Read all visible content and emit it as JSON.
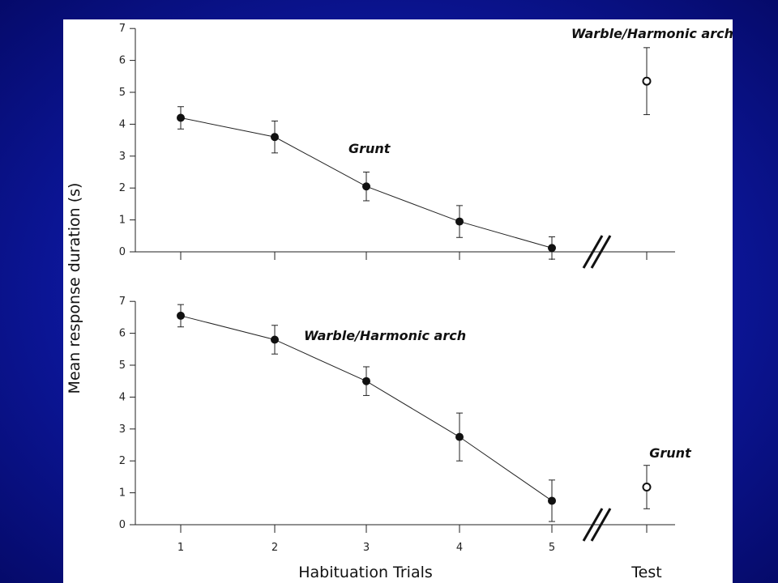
{
  "chart_data": {
    "type": "line",
    "ylabel": "Mean response duration (s)",
    "xlabel": "Habituation Trials",
    "x_categories": [
      "1",
      "2",
      "3",
      "4",
      "5",
      "Test"
    ],
    "y_ticks": [
      "0",
      "1",
      "2",
      "3",
      "4",
      "5",
      "6",
      "7"
    ],
    "ylim": [
      0,
      7
    ],
    "grid": false,
    "legend": "none",
    "panels": [
      {
        "habituation_label": "Grunt",
        "habituation": {
          "x": [
            1,
            2,
            3,
            4,
            5
          ],
          "y": [
            4.2,
            3.6,
            2.05,
            0.95,
            0.12
          ],
          "err": [
            0.35,
            0.5,
            0.45,
            0.5,
            0.35
          ]
        },
        "test_label": "Warble/Harmonic arch",
        "test": {
          "x": "Test",
          "y": 5.35,
          "err": 1.05
        }
      },
      {
        "habituation_label": "Warble/Harmonic arch",
        "habituation": {
          "x": [
            1,
            2,
            3,
            4,
            5
          ],
          "y": [
            6.55,
            5.8,
            4.5,
            2.75,
            0.75
          ],
          "err": [
            0.35,
            0.45,
            0.45,
            0.75,
            0.65
          ]
        },
        "test_label": "Grunt",
        "test": {
          "x": "Test",
          "y": 1.18,
          "err": 0.68
        }
      }
    ]
  },
  "colors": {
    "background": "#0e1aa8",
    "panel": "#ffffff",
    "ink": "#111111"
  }
}
